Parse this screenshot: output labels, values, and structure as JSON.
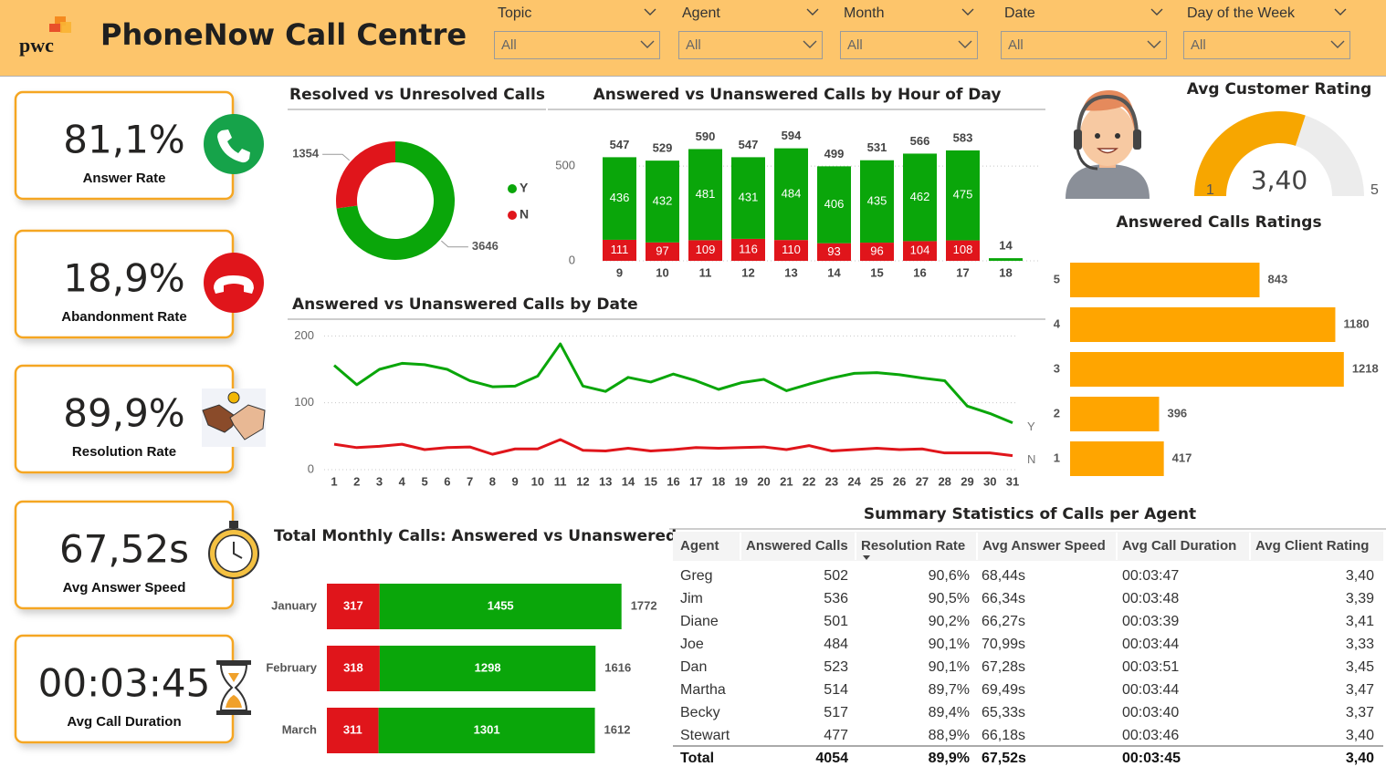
{
  "header": {
    "logo_text": "pwc",
    "title": "PhoneNow Call Centre"
  },
  "filters": [
    {
      "label": "Topic",
      "value": "All"
    },
    {
      "label": "Agent",
      "value": "All"
    },
    {
      "label": "Month",
      "value": "All"
    },
    {
      "label": "Date",
      "value": "All"
    },
    {
      "label": "Day of the Week",
      "value": "All"
    }
  ],
  "kpis": [
    {
      "value": "81,1%",
      "label": "Answer Rate"
    },
    {
      "value": "18,9%",
      "label": "Abandonment Rate"
    },
    {
      "value": "89,9%",
      "label": "Resolution Rate"
    },
    {
      "value": "67,52s",
      "label": "Avg Answer Speed"
    },
    {
      "value": "00:03:45",
      "label": "Avg Call Duration"
    }
  ],
  "chart_data": [
    {
      "type": "donut",
      "title": "Resolved vs Unresolved Calls",
      "categories": [
        "Y",
        "N"
      ],
      "values": [
        3646,
        1354
      ],
      "colors": [
        "#0aa60a",
        "#e0151b"
      ]
    },
    {
      "type": "bar",
      "stacked": true,
      "title": "Answered vs Unanswered Calls by Hour of Day",
      "categories": [
        "9",
        "10",
        "11",
        "12",
        "13",
        "14",
        "15",
        "16",
        "17",
        "18"
      ],
      "series": [
        {
          "color": "#e0151b",
          "values": [
            111,
            97,
            109,
            116,
            110,
            93,
            96,
            104,
            108,
            null
          ]
        },
        {
          "color": "#0aa60a",
          "values": [
            436,
            432,
            481,
            431,
            484,
            406,
            435,
            462,
            475,
            14
          ]
        }
      ],
      "totals": [
        547,
        529,
        590,
        547,
        594,
        499,
        531,
        566,
        583,
        14
      ],
      "ylim": [
        0,
        650
      ],
      "yticks": [
        0,
        500
      ],
      "grid": true
    },
    {
      "type": "line",
      "title": "Answered vs Unanswered Calls by Date",
      "categories": [
        "1",
        "2",
        "3",
        "4",
        "5",
        "6",
        "7",
        "8",
        "9",
        "10",
        "11",
        "12",
        "13",
        "14",
        "15",
        "16",
        "17",
        "18",
        "19",
        "20",
        "21",
        "22",
        "23",
        "24",
        "25",
        "26",
        "27",
        "28",
        "29",
        "30",
        "31"
      ],
      "series": [
        {
          "name": "Y",
          "color": "#0aa60a",
          "values": [
            156,
            127,
            150,
            159,
            157,
            150,
            133,
            124,
            125,
            140,
            188,
            125,
            117,
            138,
            131,
            143,
            133,
            120,
            130,
            135,
            118,
            128,
            137,
            144,
            145,
            142,
            137,
            133,
            95,
            84,
            70
          ]
        },
        {
          "name": "N",
          "color": "#e0151b",
          "values": [
            38,
            33,
            35,
            38,
            30,
            33,
            34,
            23,
            31,
            31,
            45,
            29,
            28,
            32,
            28,
            30,
            33,
            32,
            33,
            34,
            30,
            36,
            28,
            30,
            32,
            30,
            31,
            25,
            25,
            25,
            21
          ]
        }
      ],
      "ylim": [
        0,
        210
      ],
      "yticks": [
        0,
        100,
        200
      ],
      "grid": true
    },
    {
      "type": "gauge",
      "title": "Avg Customer Rating",
      "value": 3.4,
      "value_label": "3,40",
      "min": 1,
      "max": 5,
      "color": "#f7a600"
    },
    {
      "type": "hbar",
      "title": "Answered Calls Ratings",
      "categories": [
        "5",
        "4",
        "3",
        "2",
        "1"
      ],
      "values": [
        843,
        1180,
        1218,
        396,
        417
      ],
      "color": "#ffa500",
      "xlim": [
        0,
        1300
      ]
    },
    {
      "type": "hbar",
      "stacked": true,
      "title": "Total Monthly Calls: Answered vs Unanswered",
      "categories": [
        "January",
        "February",
        "March"
      ],
      "series": [
        {
          "color": "#e0151b",
          "values": [
            317,
            318,
            311
          ]
        },
        {
          "color": "#0aa60a",
          "values": [
            1455,
            1298,
            1301
          ]
        }
      ],
      "totals": [
        1772,
        1616,
        1612
      ],
      "xlim": [
        0,
        1900
      ]
    }
  ],
  "table": {
    "title": "Summary Statistics of Calls per Agent",
    "columns": [
      "Agent",
      "Answered Calls",
      "Resolution Rate",
      "Avg Answer Speed",
      "Avg Call Duration",
      "Avg Client Rating"
    ],
    "rows": [
      [
        "Greg",
        502,
        "90,6%",
        "68,44s",
        "00:03:47",
        "3,40"
      ],
      [
        "Jim",
        536,
        "90,5%",
        "66,34s",
        "00:03:48",
        "3,39"
      ],
      [
        "Diane",
        501,
        "90,2%",
        "66,27s",
        "00:03:39",
        "3,41"
      ],
      [
        "Joe",
        484,
        "90,1%",
        "70,99s",
        "00:03:44",
        "3,33"
      ],
      [
        "Dan",
        523,
        "90,1%",
        "67,28s",
        "00:03:51",
        "3,45"
      ],
      [
        "Martha",
        514,
        "89,7%",
        "69,49s",
        "00:03:44",
        "3,47"
      ],
      [
        "Becky",
        517,
        "89,4%",
        "65,33s",
        "00:03:40",
        "3,37"
      ],
      [
        "Stewart",
        477,
        "88,9%",
        "66,18s",
        "00:03:46",
        "3,40"
      ]
    ],
    "total": [
      "Total",
      4054,
      "89,9%",
      "67,52s",
      "00:03:45",
      "3,40"
    ]
  }
}
